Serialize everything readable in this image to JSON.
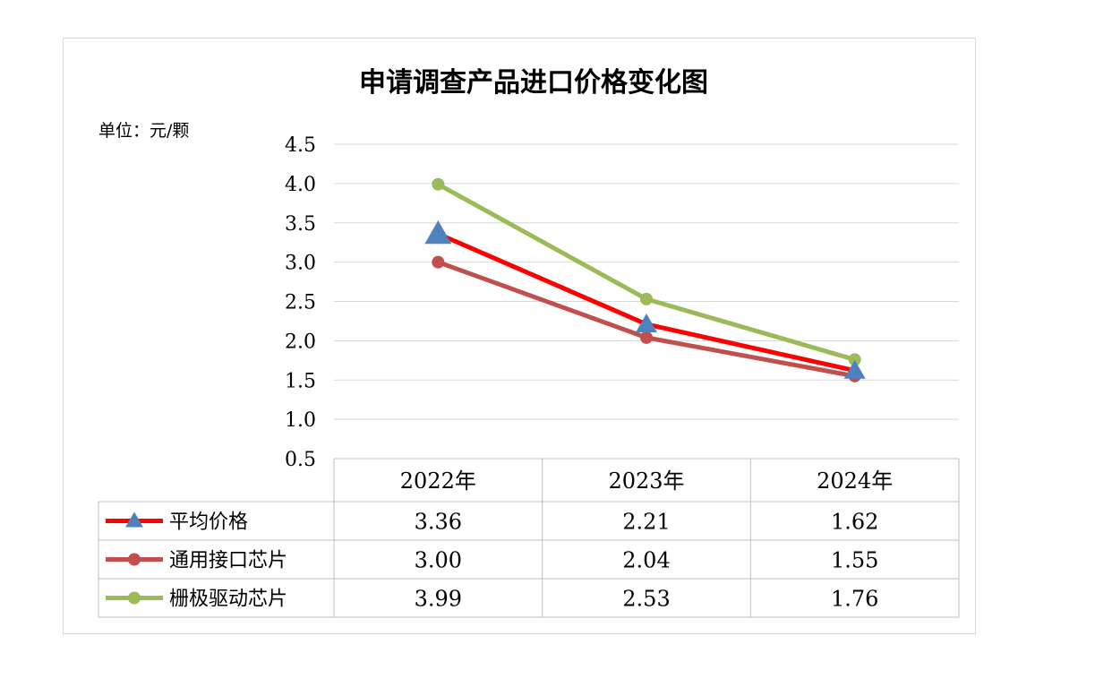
{
  "chart_data": {
    "type": "line",
    "title": "申请调查产品进口价格变化图",
    "unit_label": "单位：元/颗",
    "categories": [
      "2022年",
      "2023年",
      "2024年"
    ],
    "ylim": [
      0.5,
      4.5
    ],
    "yticks": [
      "4.5",
      "4.0",
      "3.5",
      "3.0",
      "2.5",
      "2.0",
      "1.5",
      "1.0",
      "0.5"
    ],
    "grid": true,
    "legend": "data-table",
    "series": [
      {
        "name": "平均价格",
        "values": [
          3.36,
          2.21,
          1.62
        ],
        "labels": [
          "3.36",
          "2.21",
          "1.62"
        ],
        "color": "#ff0000",
        "marker": "triangle",
        "marker_color": "#4f81bd"
      },
      {
        "name": "通用接口芯片",
        "values": [
          3.0,
          2.04,
          1.55
        ],
        "labels": [
          "3.00",
          "2.04",
          "1.55"
        ],
        "color": "#c0504d",
        "marker": "circle",
        "marker_color": "#c0504d"
      },
      {
        "name": "栅极驱动芯片",
        "values": [
          3.99,
          2.53,
          1.76
        ],
        "labels": [
          "3.99",
          "2.53",
          "1.76"
        ],
        "color": "#9bbb59",
        "marker": "circle",
        "marker_color": "#9bbb59"
      }
    ]
  }
}
